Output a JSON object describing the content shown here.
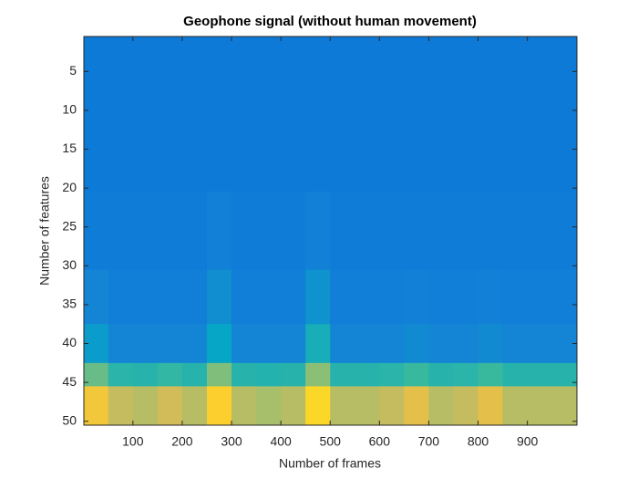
{
  "chart_data": {
    "type": "heatmap",
    "title": "Geophone signal (without human movement)",
    "x_label": "Number of frames",
    "y_label": "Number of features",
    "colormap": "parula",
    "clim": [
      0,
      1
    ],
    "xlim": [
      0.5,
      1000.5
    ],
    "ylim": [
      0.5,
      50.5
    ],
    "y_reversed": true,
    "xticks": [
      100,
      200,
      300,
      400,
      500,
      600,
      700,
      800,
      900
    ],
    "yticks": [
      5,
      10,
      15,
      20,
      25,
      30,
      35,
      40,
      45,
      50
    ],
    "x_bins": [
      0.5,
      50,
      100,
      150,
      200,
      250,
      300,
      350,
      400,
      450,
      500,
      550,
      600,
      650,
      700,
      750,
      800,
      850,
      900,
      950,
      1000.5
    ],
    "y_bins": [
      0.5,
      10.5,
      20.5,
      30.5,
      37.5,
      42.5,
      45.5,
      50.5
    ],
    "values": [
      [
        0.25,
        0.25,
        0.25,
        0.25,
        0.25,
        0.25,
        0.25,
        0.25,
        0.25,
        0.25,
        0.25,
        0.25,
        0.25,
        0.25,
        0.25,
        0.25,
        0.25,
        0.25,
        0.25,
        0.25
      ],
      [
        0.25,
        0.25,
        0.25,
        0.25,
        0.25,
        0.25,
        0.25,
        0.25,
        0.25,
        0.25,
        0.25,
        0.25,
        0.25,
        0.25,
        0.25,
        0.25,
        0.25,
        0.25,
        0.25,
        0.25
      ],
      [
        0.26,
        0.26,
        0.26,
        0.26,
        0.26,
        0.28,
        0.26,
        0.26,
        0.26,
        0.28,
        0.26,
        0.26,
        0.26,
        0.26,
        0.26,
        0.26,
        0.26,
        0.26,
        0.26,
        0.26
      ],
      [
        0.3,
        0.27,
        0.27,
        0.27,
        0.27,
        0.34,
        0.27,
        0.27,
        0.27,
        0.36,
        0.27,
        0.27,
        0.27,
        0.28,
        0.27,
        0.27,
        0.28,
        0.27,
        0.27,
        0.27
      ],
      [
        0.4,
        0.3,
        0.3,
        0.3,
        0.3,
        0.45,
        0.3,
        0.3,
        0.3,
        0.5,
        0.3,
        0.3,
        0.3,
        0.32,
        0.3,
        0.3,
        0.32,
        0.3,
        0.3,
        0.3
      ],
      [
        0.68,
        0.56,
        0.55,
        0.58,
        0.55,
        0.72,
        0.55,
        0.54,
        0.55,
        0.74,
        0.55,
        0.55,
        0.56,
        0.6,
        0.55,
        0.56,
        0.6,
        0.55,
        0.55,
        0.55
      ],
      [
        0.92,
        0.82,
        0.8,
        0.84,
        0.8,
        0.95,
        0.8,
        0.78,
        0.8,
        0.96,
        0.8,
        0.8,
        0.82,
        0.88,
        0.8,
        0.82,
        0.88,
        0.8,
        0.8,
        0.8
      ]
    ]
  }
}
